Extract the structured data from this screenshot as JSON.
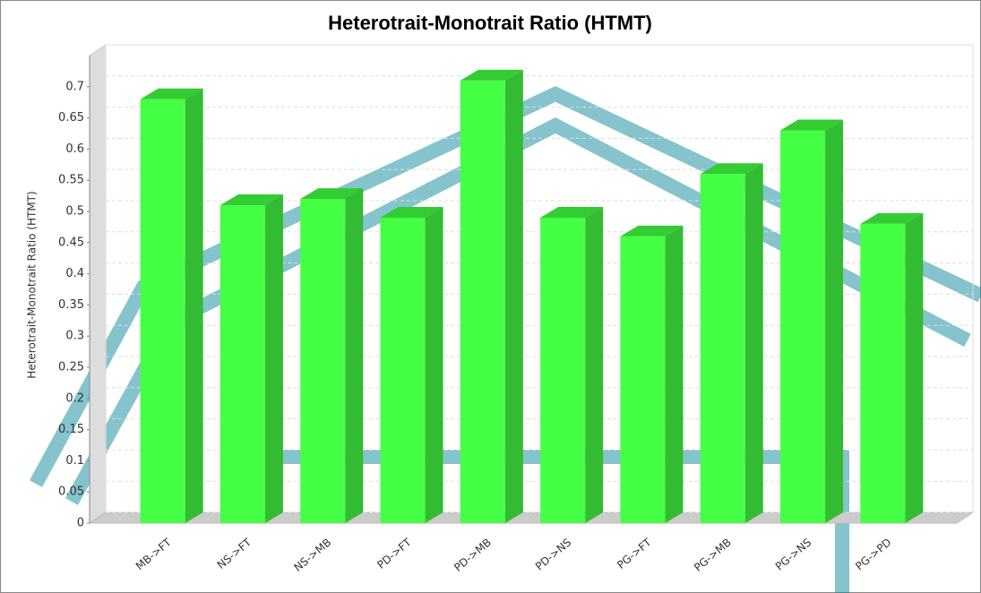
{
  "chart_data": {
    "type": "bar3d",
    "title": "Heterotrait-Monotrait Ratio (HTMT)",
    "y_label": "Heterotrait-Monotrait Ratio (HTMT)",
    "categories": [
      "MB->FT",
      "NS->FT",
      "NS->MB",
      "PD->FT",
      "PD->MB",
      "PD->NS",
      "PG->FT",
      "PG->MB",
      "PG->NS",
      "PG->PD"
    ],
    "values": [
      0.68,
      0.51,
      0.52,
      0.49,
      0.71,
      0.49,
      0.46,
      0.56,
      0.63,
      0.48
    ],
    "color": "#44ff44",
    "ylim": [
      0,
      0.75
    ],
    "yticks": [
      0,
      0.05,
      0.1,
      0.15,
      0.2,
      0.25,
      0.3,
      0.35,
      0.4,
      0.45,
      0.5,
      0.55,
      0.6,
      0.65,
      0.7
    ],
    "grid": true
  }
}
